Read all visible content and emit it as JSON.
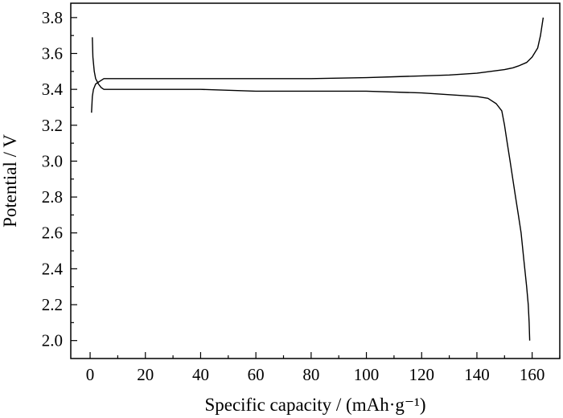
{
  "chart_data": {
    "type": "line",
    "xlabel": "Specific capacity / (mAh·g⁻¹)",
    "ylabel": "Potential / V",
    "xlim": [
      -7,
      170
    ],
    "ylim": [
      1.9,
      3.88
    ],
    "xticks": [
      0,
      20,
      40,
      60,
      80,
      100,
      120,
      140,
      160
    ],
    "yticks": [
      2.0,
      2.2,
      2.4,
      2.6,
      2.8,
      3.0,
      3.2,
      3.4,
      3.6,
      3.8
    ],
    "xtick_labels": [
      "0",
      "20",
      "40",
      "60",
      "80",
      "100",
      "120",
      "140",
      "160"
    ],
    "ytick_labels": [
      "2.0",
      "2.2",
      "2.4",
      "2.6",
      "2.8",
      "3.0",
      "3.2",
      "3.4",
      "3.6",
      "3.8"
    ],
    "grid": false,
    "legend": "none",
    "series": [
      {
        "x": [
          0.5,
          0.8,
          1.2,
          2,
          3,
          5,
          10,
          20,
          40,
          60,
          80,
          100,
          110,
          120,
          130,
          140,
          145,
          150,
          153,
          155,
          158,
          160,
          162,
          163,
          164
        ],
        "y": [
          3.27,
          3.36,
          3.4,
          3.43,
          3.44,
          3.46,
          3.46,
          3.46,
          3.46,
          3.46,
          3.46,
          3.465,
          3.47,
          3.475,
          3.48,
          3.49,
          3.5,
          3.51,
          3.52,
          3.53,
          3.55,
          3.58,
          3.63,
          3.7,
          3.8
        ]
      },
      {
        "x": [
          0.8,
          1.0,
          1.5,
          2,
          3,
          4,
          5,
          10,
          20,
          40,
          60,
          80,
          100,
          120,
          130,
          140,
          144,
          147,
          149,
          150,
          151,
          152,
          153,
          154,
          155,
          156,
          157,
          158,
          158.6,
          158.9,
          159.1
        ],
        "y": [
          3.69,
          3.58,
          3.5,
          3.46,
          3.43,
          3.41,
          3.4,
          3.4,
          3.4,
          3.4,
          3.39,
          3.39,
          3.39,
          3.38,
          3.37,
          3.36,
          3.35,
          3.32,
          3.28,
          3.2,
          3.1,
          3.0,
          2.9,
          2.8,
          2.7,
          2.6,
          2.45,
          2.3,
          2.2,
          2.1,
          2.0
        ]
      }
    ]
  }
}
